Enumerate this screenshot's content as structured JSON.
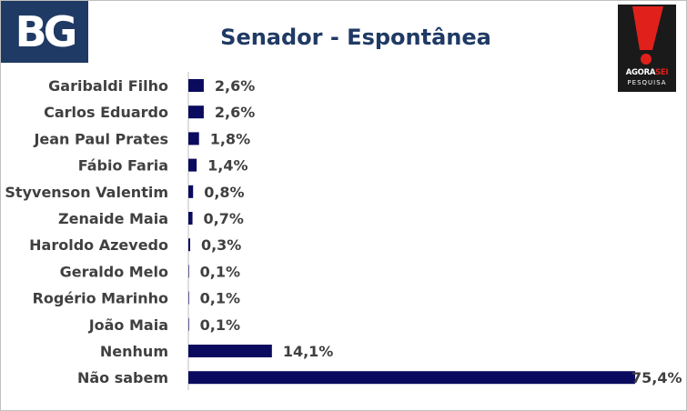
{
  "logos": {
    "left": "BG",
    "right_brand_a": "AGORA",
    "right_brand_b": "SEI",
    "right_sub": "PESQUISA"
  },
  "colors": {
    "bar": "#0a0a5e",
    "title": "#1f3a64",
    "text": "#404040",
    "logo_bg": "#1f3a64",
    "logo_accent": "#e0201b"
  },
  "chart_data": {
    "type": "bar",
    "orientation": "horizontal",
    "title": "Senador - Espontânea",
    "categories": [
      "Garibaldi Filho",
      "Carlos Eduardo",
      "Jean Paul Prates",
      "Fábio Faria",
      "Styvenson Valentim",
      "Zenaide Maia",
      "Haroldo Azevedo",
      "Geraldo Melo",
      "Rogério Marinho",
      "João Maia",
      "Nenhum",
      "Não sabem"
    ],
    "values": [
      2.6,
      2.6,
      1.8,
      1.4,
      0.8,
      0.7,
      0.3,
      0.1,
      0.1,
      0.1,
      14.1,
      75.4
    ],
    "value_labels": [
      "2,6%",
      "2,6%",
      "1,8%",
      "1,4%",
      "0,8%",
      "0,7%",
      "0,3%",
      "0,1%",
      "0,1%",
      "0,1%",
      "14,1%",
      "75,4%"
    ],
    "xlim": [
      0,
      75.4
    ],
    "grid": false,
    "legend": "none"
  }
}
